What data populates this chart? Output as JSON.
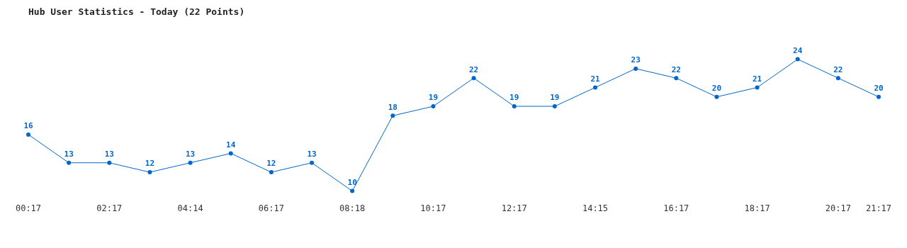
{
  "chart_data": {
    "type": "line",
    "title": "Hub User Statistics - Today (22 Points)",
    "categories": [
      "00:17",
      null,
      "02:17",
      null,
      "04:14",
      null,
      "06:17",
      null,
      "08:18",
      null,
      "10:17",
      null,
      "12:17",
      null,
      "14:15",
      null,
      "16:17",
      null,
      "18:17",
      null,
      "20:17",
      "21:17"
    ],
    "series": [
      {
        "color": "#0066cc",
        "values": [
          16,
          13,
          13,
          12,
          13,
          14,
          12,
          13,
          10,
          18,
          19,
          22,
          19,
          19,
          21,
          23,
          22,
          20,
          21,
          24,
          22,
          20
        ]
      }
    ],
    "data_labels": true,
    "grid": false,
    "legend": false,
    "marker": "circle",
    "line_style": "solid",
    "tick_labels": "x"
  }
}
